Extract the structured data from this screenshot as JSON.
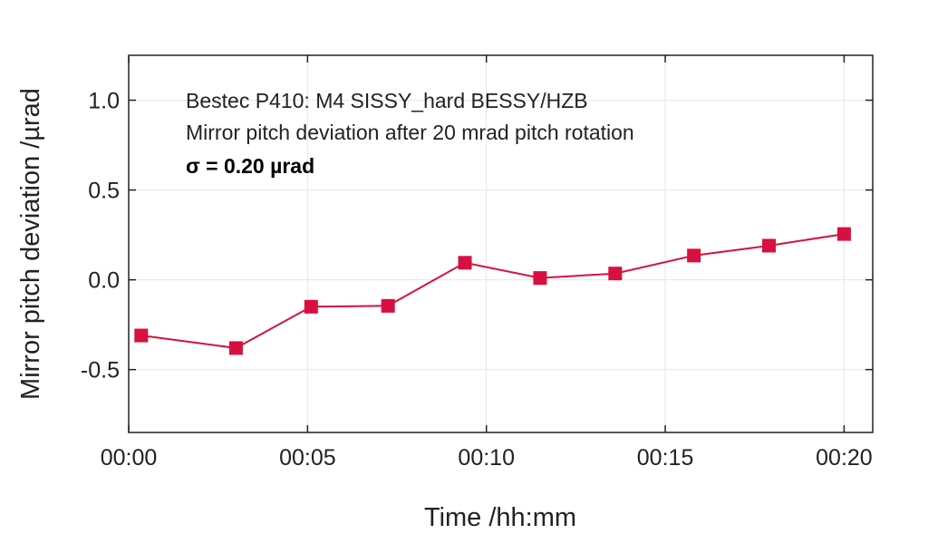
{
  "chart_data": {
    "type": "line",
    "xlabel": "Time /hh:mm",
    "ylabel": "Mirror pitch deviation /µrad",
    "x_unit": "minutes",
    "xlim": [
      0,
      20.8
    ],
    "ylim": [
      -0.85,
      1.25
    ],
    "x_ticks": [
      0,
      5,
      10,
      15,
      20
    ],
    "x_tick_labels": [
      "00:00",
      "00:05",
      "00:10",
      "00:15",
      "00:20"
    ],
    "y_ticks": [
      1.0,
      0.5,
      0.0,
      -0.5
    ],
    "y_tick_labels": [
      "1.0",
      "0.5",
      "0.0",
      "-0.5"
    ],
    "grid": true,
    "series": [
      {
        "color": "#d8103f",
        "marker": "square",
        "points": [
          {
            "x": 0.35,
            "y": -0.31
          },
          {
            "x": 3.0,
            "y": -0.38
          },
          {
            "x": 5.1,
            "y": -0.15
          },
          {
            "x": 7.25,
            "y": -0.145
          },
          {
            "x": 9.4,
            "y": 0.095
          },
          {
            "x": 11.5,
            "y": 0.01
          },
          {
            "x": 13.6,
            "y": 0.035
          },
          {
            "x": 15.8,
            "y": 0.135
          },
          {
            "x": 17.9,
            "y": 0.19
          },
          {
            "x": 20.0,
            "y": 0.255
          }
        ]
      }
    ],
    "annotations": [
      "Bestec P410: M4 SISSY_hard BESSY/HZB",
      "Mirror pitch deviation after 20 mrad pitch rotation"
    ],
    "annotation_bold": "σ = 0.20 µrad"
  }
}
